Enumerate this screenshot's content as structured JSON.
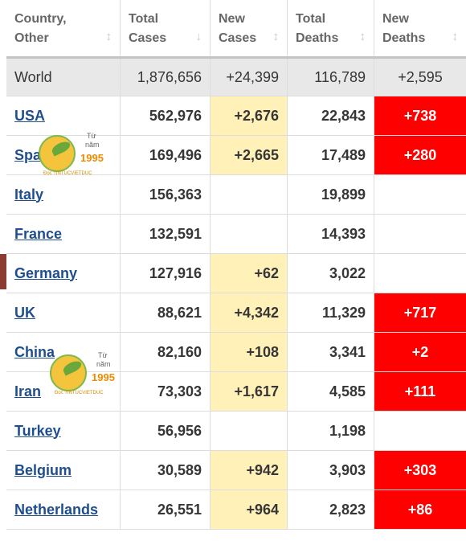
{
  "headers": [
    {
      "line1": "Country,",
      "line2": "Other",
      "sort": "↕"
    },
    {
      "line1": "Total",
      "line2": "Cases",
      "sort": "↓"
    },
    {
      "line1": "New",
      "line2": "Cases",
      "sort": "↕"
    },
    {
      "line1": "Total",
      "line2": "Deaths",
      "sort": "↕"
    },
    {
      "line1": "New",
      "line2": "Deaths",
      "sort": "↕"
    }
  ],
  "world": {
    "country": "World",
    "total_cases": "1,876,656",
    "new_cases": "+24,399",
    "total_deaths": "116,789",
    "new_deaths": "+2,595"
  },
  "rows": [
    {
      "country": "USA",
      "total_cases": "562,976",
      "new_cases": "+2,676",
      "total_deaths": "22,843",
      "new_deaths": "+738"
    },
    {
      "country": "Spain",
      "total_cases": "169,496",
      "new_cases": "+2,665",
      "total_deaths": "17,489",
      "new_deaths": "+280"
    },
    {
      "country": "Italy",
      "total_cases": "156,363",
      "new_cases": "",
      "total_deaths": "19,899",
      "new_deaths": ""
    },
    {
      "country": "France",
      "total_cases": "132,591",
      "new_cases": "",
      "total_deaths": "14,393",
      "new_deaths": ""
    },
    {
      "country": "Germany",
      "total_cases": "127,916",
      "new_cases": "+62",
      "total_deaths": "3,022",
      "new_deaths": ""
    },
    {
      "country": "UK",
      "total_cases": "88,621",
      "new_cases": "+4,342",
      "total_deaths": "11,329",
      "new_deaths": "+717"
    },
    {
      "country": "China",
      "total_cases": "82,160",
      "new_cases": "+108",
      "total_deaths": "3,341",
      "new_deaths": "+2"
    },
    {
      "country": "Iran",
      "total_cases": "73,303",
      "new_cases": "+1,617",
      "total_deaths": "4,585",
      "new_deaths": "+111"
    },
    {
      "country": "Turkey",
      "total_cases": "56,956",
      "new_cases": "",
      "total_deaths": "1,198",
      "new_deaths": ""
    },
    {
      "country": "Belgium",
      "total_cases": "30,589",
      "new_cases": "+942",
      "total_deaths": "3,903",
      "new_deaths": "+303"
    },
    {
      "country": "Netherlands",
      "total_cases": "26,551",
      "new_cases": "+964",
      "total_deaths": "2,823",
      "new_deaths": "+86"
    }
  ],
  "watermark": {
    "small_top": "Từ",
    "small_mid": "năm",
    "year": "1995",
    "site": "Đọc TINTUCVIETDUC"
  },
  "colors": {
    "highlight_yellow": "#fff1b8",
    "highlight_red": "#ff0000",
    "link_blue": "#1f4e8f"
  }
}
